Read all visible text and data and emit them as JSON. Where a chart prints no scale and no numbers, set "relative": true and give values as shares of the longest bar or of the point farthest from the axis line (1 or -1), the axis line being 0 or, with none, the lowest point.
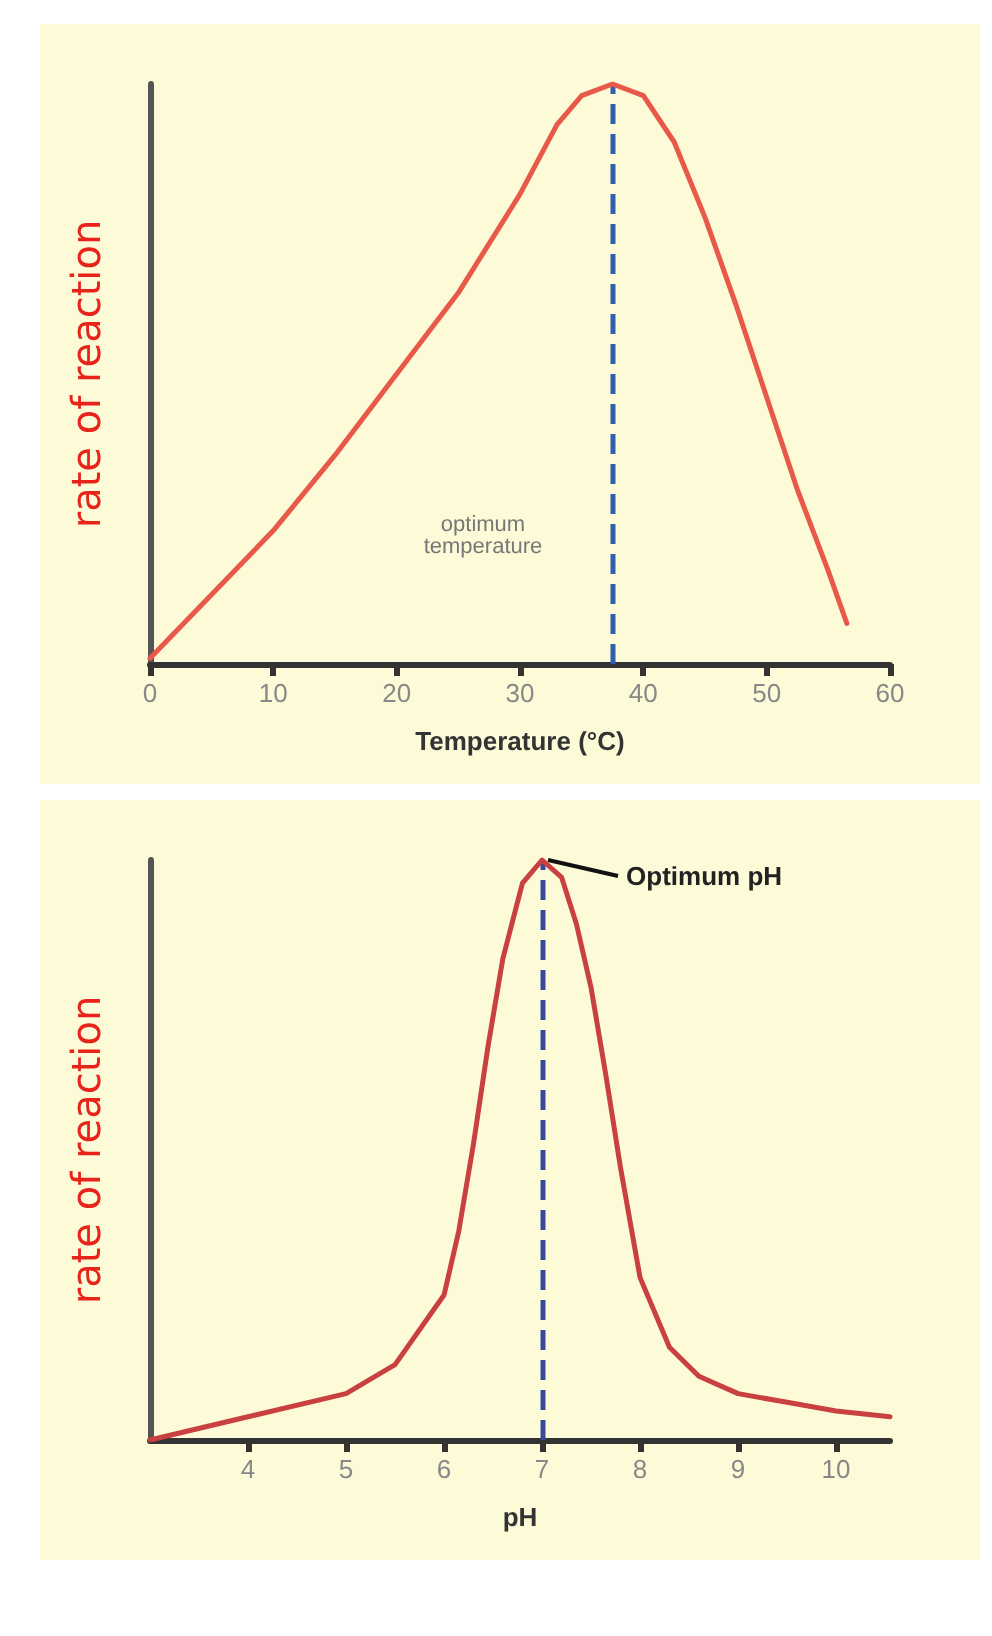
{
  "chart_data": [
    {
      "type": "line",
      "relative": true,
      "xlabel": "Temperature (°C)",
      "ylabel": "rate of reaction",
      "xlim": [
        0,
        60
      ],
      "xticks": [
        0,
        10,
        20,
        30,
        40,
        50,
        60
      ],
      "marker": "none",
      "series": [
        {
          "color": "#e8594a",
          "x": [
            0,
            5,
            10,
            15,
            20,
            25,
            30,
            33,
            35,
            37.5,
            40,
            42.5,
            45,
            47.5,
            50,
            52.5,
            55,
            56.5
          ],
          "values": [
            0.01,
            0.12,
            0.23,
            0.36,
            0.5,
            0.64,
            0.81,
            0.93,
            0.98,
            1.0,
            0.98,
            0.9,
            0.77,
            0.62,
            0.46,
            0.3,
            0.16,
            0.07
          ]
        }
      ],
      "ref_lines": [
        {
          "axis": "x",
          "value": 37.5,
          "color": "#2f5fb0",
          "line_style": "dashed"
        }
      ],
      "annotations": [
        "optimum temperature"
      ]
    },
    {
      "type": "line",
      "relative": true,
      "xlabel": "pH",
      "ylabel": "rate of reaction",
      "xlim": [
        3,
        10.55
      ],
      "xticks": [
        4,
        5,
        6,
        7,
        8,
        9,
        10
      ],
      "marker": "none",
      "series": [
        {
          "color": "#c94040",
          "x": [
            3,
            4,
            5,
            5.5,
            6,
            6.15,
            6.3,
            6.45,
            6.6,
            6.8,
            7,
            7.2,
            7.35,
            7.5,
            7.65,
            7.8,
            8,
            8.3,
            8.6,
            9,
            9.5,
            10,
            10.55
          ],
          "values": [
            0,
            0.04,
            0.08,
            0.13,
            0.25,
            0.36,
            0.51,
            0.68,
            0.83,
            0.96,
            1.0,
            0.97,
            0.89,
            0.78,
            0.63,
            0.47,
            0.28,
            0.16,
            0.11,
            0.08,
            0.065,
            0.05,
            0.04
          ]
        }
      ],
      "ref_lines": [
        {
          "axis": "x",
          "value": 7,
          "color": "#3a4a9a",
          "line_style": "dashed"
        }
      ],
      "annotations": [
        {
          "text": "Optimum pH",
          "x": 7,
          "y": 1.0
        }
      ]
    }
  ]
}
